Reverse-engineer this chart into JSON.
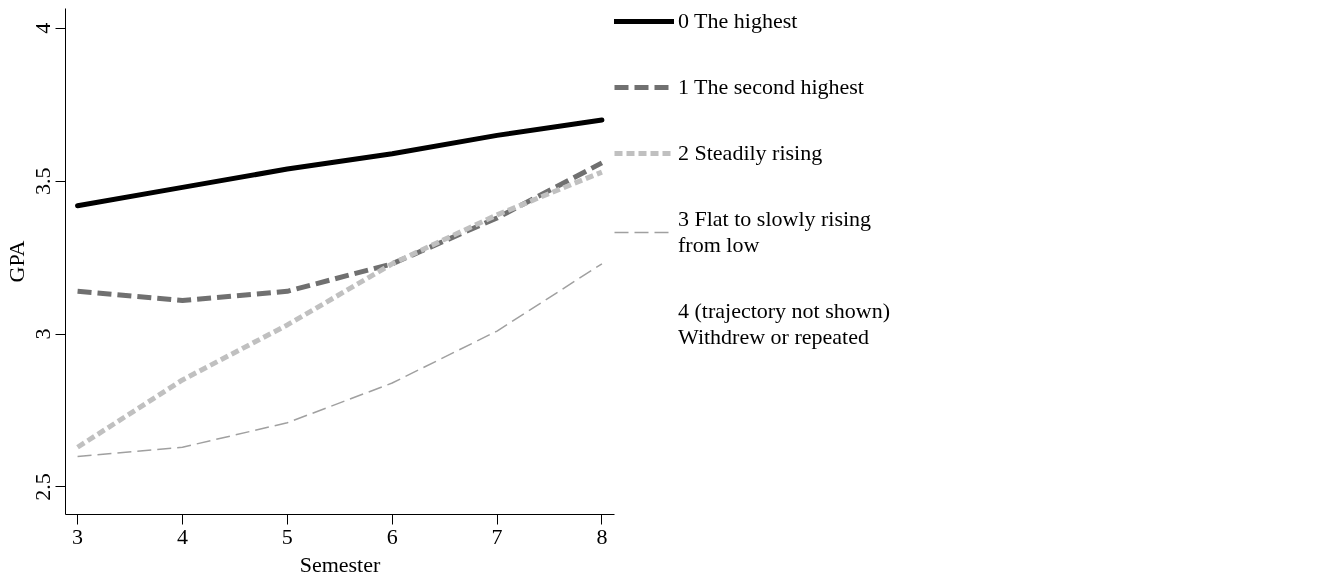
{
  "chart_data": {
    "type": "line",
    "xlabel": "Semester",
    "ylabel": "GPA",
    "x": [
      3,
      4,
      5,
      6,
      7,
      8
    ],
    "series": [
      {
        "name": "0 The highest",
        "color": "#000000",
        "line_style": "solid",
        "values": [
          3.42,
          3.48,
          3.54,
          3.59,
          3.65,
          3.7
        ]
      },
      {
        "name": "1 The second highest",
        "color": "#707070",
        "line_style": "dashed",
        "values": [
          3.14,
          3.11,
          3.14,
          3.23,
          3.38,
          3.56
        ]
      },
      {
        "name": "2 Steadily rising",
        "color": "#c0c0c0",
        "line_style": "dashed",
        "values": [
          2.63,
          2.85,
          3.03,
          3.23,
          3.39,
          3.53
        ]
      },
      {
        "name": "3 Flat to slowly rising\nfrom low",
        "color": "#a0a0a0",
        "line_style": "dashed",
        "values": [
          2.6,
          2.63,
          2.71,
          2.84,
          3.01,
          3.23
        ]
      }
    ],
    "annotations": [
      "4 (trajectory not shown)\nWithdrew or repeated"
    ],
    "xlim": [
      2.885,
      8.12
    ],
    "ylim": [
      2.41,
      4.065
    ],
    "xticks": [
      3,
      4,
      5,
      6,
      7,
      8
    ],
    "yticks": [
      2.5,
      3,
      3.5,
      4
    ],
    "grid": false,
    "legend": "right",
    "marker": "none"
  }
}
